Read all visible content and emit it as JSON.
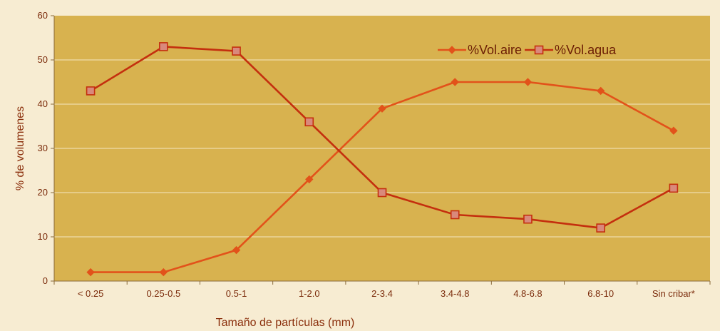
{
  "chart_data": {
    "type": "line",
    "categories": [
      "< 0.25",
      "0.25-0.5",
      "0.5-1",
      "1-2.0",
      "2-3.4",
      "3.4-4.8",
      "4.8-6.8",
      "6.8-10",
      "Sin cribar*"
    ],
    "series": [
      {
        "name": "%Vol.aire",
        "values": [
          2,
          2,
          7,
          23,
          39,
          45,
          45,
          43,
          34
        ],
        "color": "#e2521a",
        "marker": "diamond"
      },
      {
        "name": "%Vol.agua",
        "values": [
          43,
          53,
          52,
          36,
          20,
          15,
          14,
          12,
          21
        ],
        "color": "#c42f0e",
        "marker": "square"
      }
    ],
    "xlabel": "Tamaño de partículas (mm)",
    "ylabel": "% de volumenes",
    "ylim": [
      0,
      60
    ],
    "yticks": [
      0,
      10,
      20,
      30,
      40,
      50,
      60
    ],
    "grid": true,
    "legend_position": "top-right",
    "plot_background": "#d8b24f",
    "page_background": "#f7ecd2"
  }
}
